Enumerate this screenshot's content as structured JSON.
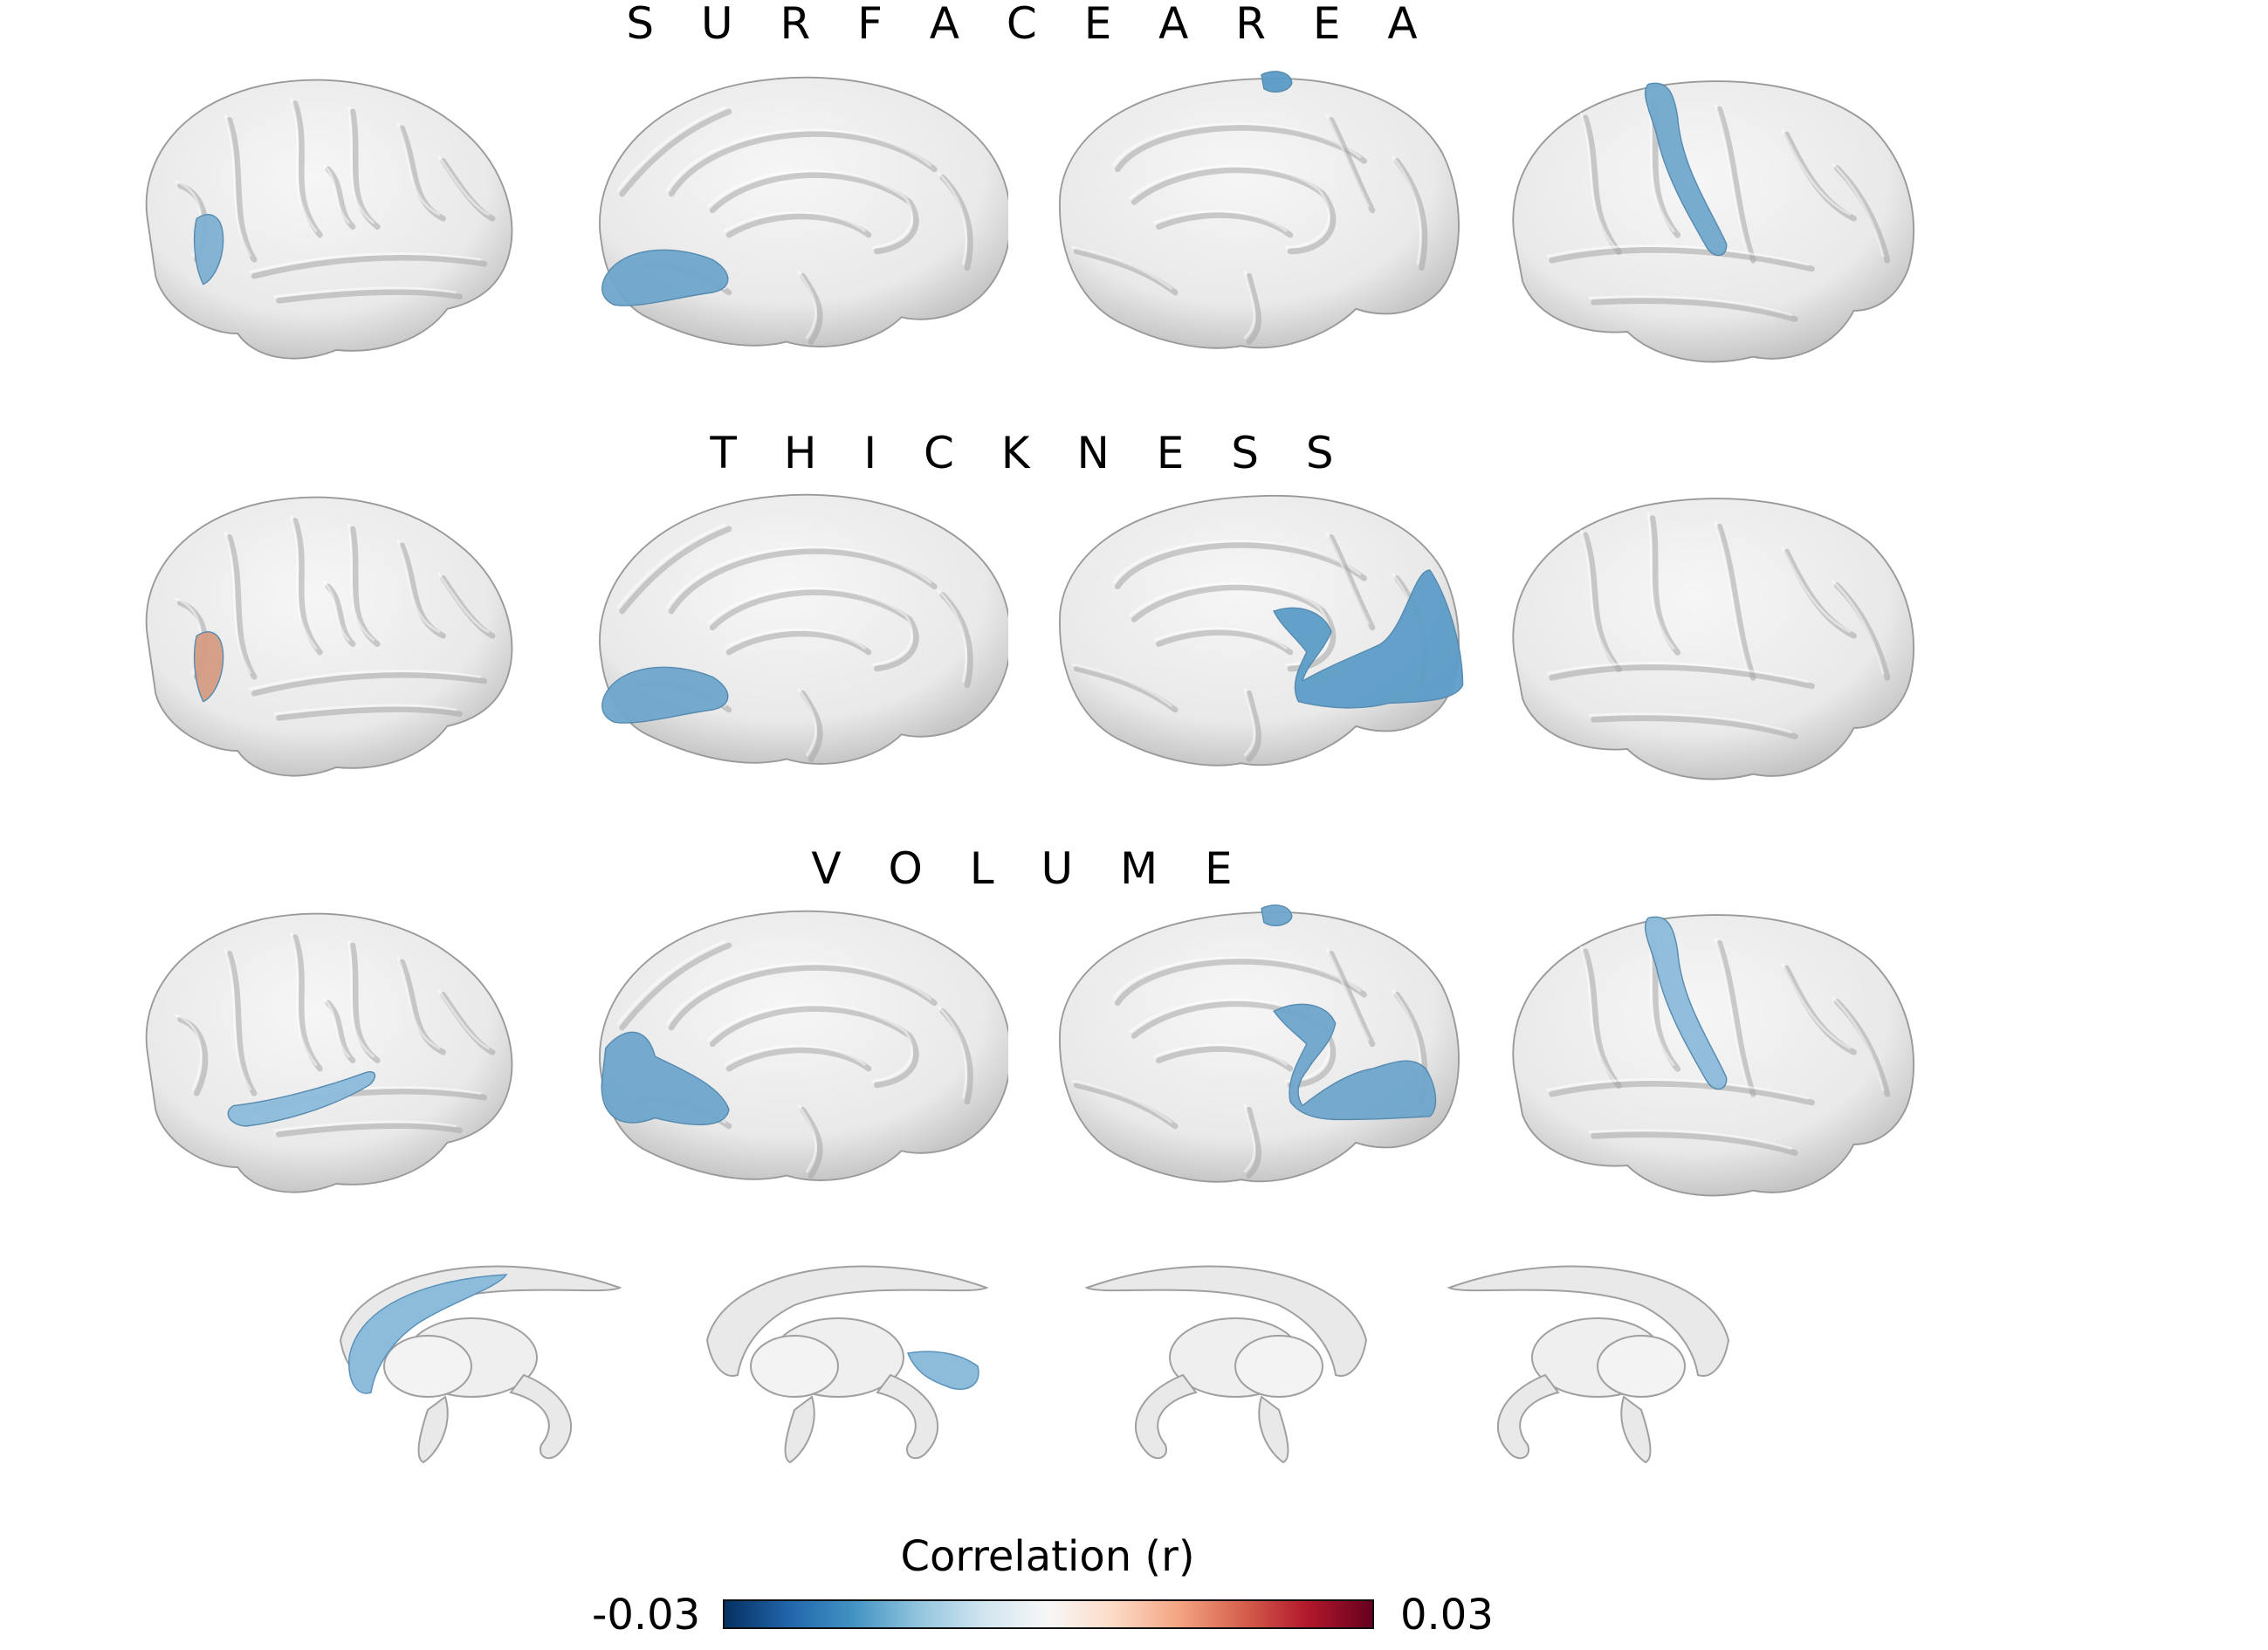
{
  "sections": [
    {
      "title": "S U R F A C E   A R E A",
      "views": [
        {
          "view": "left-lateral",
          "regions": [
            {
              "name": "pars-triangularis",
              "color": "#7fb0d2"
            }
          ]
        },
        {
          "view": "left-medial",
          "regions": [
            {
              "name": "lingual",
              "color": "#6fa6cd"
            }
          ]
        },
        {
          "view": "right-medial",
          "regions": [
            {
              "name": "paracentral",
              "color": "#5a9bc7"
            }
          ]
        },
        {
          "view": "right-lateral",
          "regions": [
            {
              "name": "postcentral",
              "color": "#72a9ce"
            }
          ]
        }
      ]
    },
    {
      "title": "T H I C K N E S S",
      "views": [
        {
          "view": "left-lateral",
          "regions": [
            {
              "name": "pars-triangularis",
              "color": "#d59c83"
            }
          ]
        },
        {
          "view": "left-medial",
          "regions": [
            {
              "name": "lingual",
              "color": "#6fa6cd"
            }
          ]
        },
        {
          "view": "right-medial",
          "regions": [
            {
              "name": "cuneus-pericalcarine-lingual",
              "color": "#5d9dc8"
            }
          ]
        },
        {
          "view": "right-lateral",
          "regions": []
        }
      ]
    },
    {
      "title": "V O L U M E",
      "views": [
        {
          "view": "left-lateral",
          "regions": [
            {
              "name": "superior-temporal",
              "color": "#8dbcdb"
            }
          ]
        },
        {
          "view": "left-medial",
          "regions": [
            {
              "name": "cuneus-lingual",
              "color": "#6fa6cd"
            }
          ]
        },
        {
          "view": "right-medial",
          "regions": [
            {
              "name": "paracentral-cuneus-lingual",
              "color": "#6fa6cd"
            }
          ]
        },
        {
          "view": "right-lateral",
          "regions": [
            {
              "name": "postcentral",
              "color": "#8dbcdb"
            }
          ]
        }
      ]
    }
  ],
  "subcortical": [
    {
      "view": "left-lateral",
      "regions": [
        {
          "name": "caudate",
          "color": "#8dbcdb"
        }
      ]
    },
    {
      "view": "left-medial",
      "regions": [
        {
          "name": "hippocampus",
          "color": "#8dbcdb"
        }
      ]
    },
    {
      "view": "right-medial",
      "regions": []
    },
    {
      "view": "right-lateral",
      "regions": []
    }
  ],
  "colorbar": {
    "label": "Correlation (r)",
    "min_label": "-0.03",
    "max_label": "0.03",
    "min": -0.03,
    "max": 0.03,
    "colormap": [
      "#053061",
      "#2166ac",
      "#4393c3",
      "#92c5de",
      "#d1e5f0",
      "#f7f7f7",
      "#fddbc7",
      "#f4a582",
      "#d6604d",
      "#b2182b",
      "#67001f"
    ]
  },
  "base_surface_color": "#e9e9e9"
}
